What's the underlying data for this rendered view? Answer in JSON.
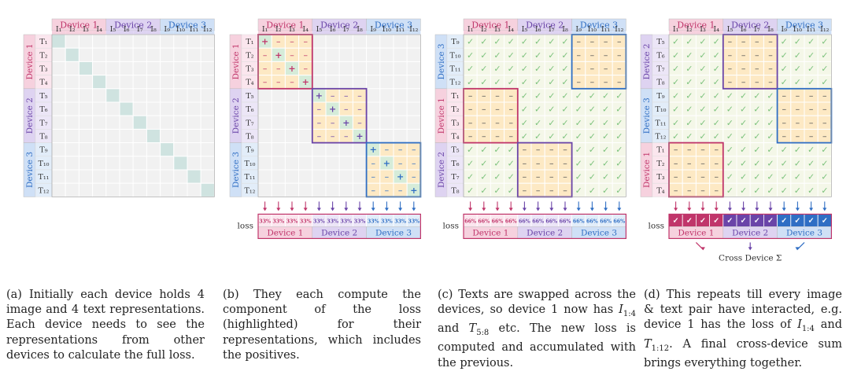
{
  "devices": [
    {
      "label": "Device 1",
      "color": "#c0356a",
      "header_fill": "#f6d1de",
      "band_fill": "#fbe6ee"
    },
    {
      "label": "Device 2",
      "color": "#6a44a8",
      "header_fill": "#ded3f1",
      "band_fill": "#ece6f7"
    },
    {
      "label": "Device 3",
      "color": "#2f6ec4",
      "header_fill": "#cfe0f6",
      "band_fill": "#e2edf9"
    }
  ],
  "image_labels": [
    "I₁",
    "I₂",
    "I₃",
    "I₄",
    "I₅",
    "I₆",
    "I₇",
    "I₈",
    "I₉",
    "I₁₀",
    "I₁₁",
    "I₁₂"
  ],
  "text_labels": [
    "T₁",
    "T₂",
    "T₃",
    "T₄",
    "T₅",
    "T₆",
    "T₇",
    "T₈",
    "T₉",
    "T₁₀",
    "T₁₁",
    "T₁₂"
  ],
  "panels": [
    {
      "id": "a",
      "row_devices": [
        "Device 1",
        "Device 2",
        "Device 3"
      ]
    },
    {
      "id": "b",
      "row_devices": [
        "Device 1",
        "Device 2",
        "Device 3"
      ],
      "loss_label": "loss",
      "loss_values": [
        "33%",
        "33%",
        "33%",
        "33%",
        "33%",
        "33%",
        "33%",
        "33%",
        "33%",
        "33%",
        "33%",
        "33%"
      ],
      "loss_devices": [
        "Device 1",
        "Device 2",
        "Device 3"
      ]
    },
    {
      "id": "c",
      "row_devices": [
        "Device 3",
        "Device 1",
        "Device 2"
      ],
      "loss_label": "loss",
      "loss_values": [
        "66%",
        "66%",
        "66%",
        "66%",
        "66%",
        "66%",
        "66%",
        "66%",
        "66%",
        "66%",
        "66%",
        "66%"
      ],
      "loss_devices": [
        "Device 1",
        "Device 2",
        "Device 3"
      ]
    },
    {
      "id": "d",
      "row_devices": [
        "Device 2",
        "Device 3",
        "Device 1"
      ],
      "loss_label": "loss",
      "loss_values": [
        "✓",
        "✓",
        "✓",
        "✓",
        "✓",
        "✓",
        "✓",
        "✓",
        "✓",
        "✓",
        "✓",
        "✓"
      ],
      "loss_devices": [
        "Device 1",
        "Device 2",
        "Device 3"
      ],
      "cross_label": "Cross Device Σ"
    }
  ],
  "glyphs": {
    "plus": "+",
    "minus": "–",
    "check": "✓"
  },
  "captions": {
    "a": "(a) Initially each device holds 4 image and 4 text representations. Each device needs to see the representations from other devices to calculate the full loss.",
    "b": "(b) They each compute the component of the loss (highlighted) for their representations, which includes the positives.",
    "c": "(c) Texts are swapped across the devices, so device 1 now has I1:4 and T5:8 etc. The new loss is computed and accumulated with the previous.",
    "d": "(d) This repeats till every image & text pair have interacted, e.g. device 1 has the loss of I1:4 and T1:12. A final cross-device sum brings everything together."
  }
}
